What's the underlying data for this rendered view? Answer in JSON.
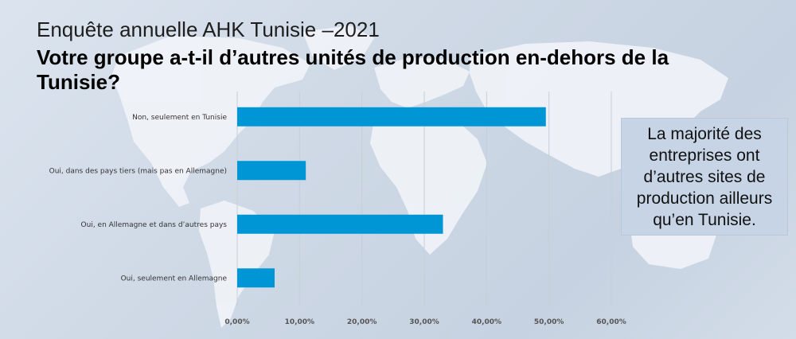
{
  "slide": {
    "subtitle": "Enquête annuelle AHK Tunisie –2021",
    "title": "Votre groupe a-t-il d’autres unités de production en-dehors de la Tunisie?",
    "note": "La majorité des entreprises ont d’autres sites de production ailleurs qu’en Tunisie."
  },
  "chart_data": {
    "type": "bar",
    "orientation": "horizontal",
    "categories": [
      "Non, seulement en Tunisie",
      "Oui, dans des pays tiers (mais pas en Allemagne)",
      "Oui, en Allemagne et dans d’autres pays",
      "Oui, seulement en Allemagne"
    ],
    "values": [
      0.495,
      0.11,
      0.33,
      0.06
    ],
    "xlim": [
      0,
      0.6
    ],
    "xticks": [
      0,
      0.1,
      0.2,
      0.3,
      0.4,
      0.5,
      0.6
    ],
    "xtick_labels": [
      "0,00%",
      "10,00%",
      "20,00%",
      "30,00%",
      "40,00%",
      "50,00%",
      "60,00%"
    ],
    "grid": true,
    "bar_color": "#0096d6",
    "grid_color": "#c8ced6"
  }
}
